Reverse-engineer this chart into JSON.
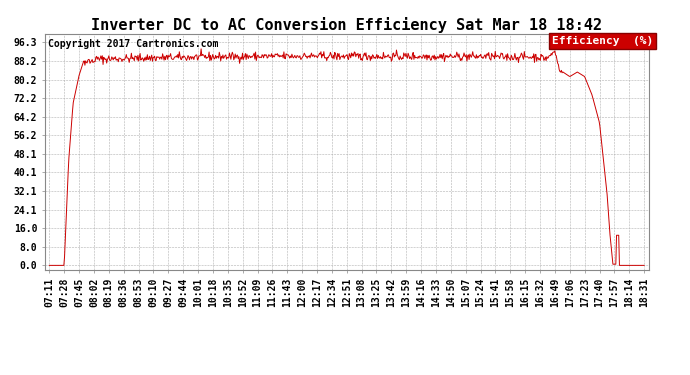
{
  "title": "Inverter DC to AC Conversion Efficiency Sat Mar 18 18:42",
  "copyright": "Copyright 2017 Cartronics.com",
  "legend_label": "Efficiency  (%)",
  "legend_bg": "#cc0000",
  "legend_text_color": "#ffffff",
  "line_color": "#cc0000",
  "bg_color": "#ffffff",
  "grid_color": "#b0b0b0",
  "yticks": [
    0.0,
    8.0,
    16.0,
    24.1,
    32.1,
    40.1,
    48.1,
    56.2,
    64.2,
    72.2,
    80.2,
    88.2,
    96.3
  ],
  "ylim": [
    -2,
    100
  ],
  "xtick_labels": [
    "07:11",
    "07:28",
    "07:45",
    "08:02",
    "08:19",
    "08:36",
    "08:53",
    "09:10",
    "09:27",
    "09:44",
    "10:01",
    "10:18",
    "10:35",
    "10:52",
    "11:09",
    "11:26",
    "11:43",
    "12:00",
    "12:17",
    "12:34",
    "12:51",
    "13:08",
    "13:25",
    "13:42",
    "13:59",
    "14:16",
    "14:33",
    "14:50",
    "15:07",
    "15:24",
    "15:41",
    "15:58",
    "16:15",
    "16:32",
    "16:49",
    "17:06",
    "17:23",
    "17:40",
    "17:57",
    "18:14",
    "18:31"
  ],
  "title_fontsize": 11,
  "copyright_fontsize": 7,
  "tick_fontsize": 7,
  "legend_fontsize": 8
}
